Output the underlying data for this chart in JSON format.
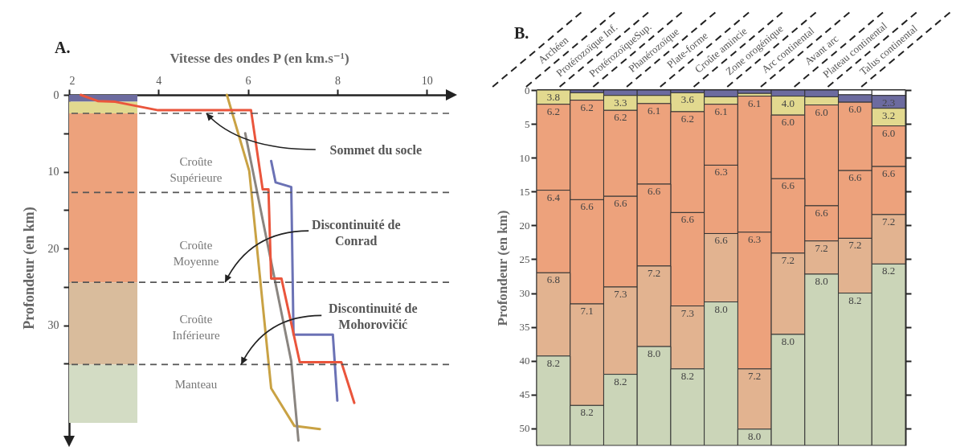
{
  "chart_data": [
    {
      "type": "line",
      "title": "A.",
      "xlabel": "Vitesse des ondes P (en km.s⁻¹)",
      "ylabel": "Profondeur (en km)",
      "xlim": [
        2,
        10.5
      ],
      "xticks": [
        2,
        4,
        6,
        8,
        10
      ],
      "ylim": [
        45,
        0
      ],
      "yticks": [
        0,
        {
          "value": 5,
          "label": null
        },
        10,
        {
          "value": 15,
          "label": null
        },
        20,
        {
          "value": 25,
          "label": null
        },
        30,
        {
          "value": 35,
          "label": null
        }
      ],
      "marker": "none",
      "line_style": "solid",
      "series": [
        {
          "color": "#c9a244",
          "x": [
            5.53,
            6.03,
            6.52,
            7.04,
            7.61
          ],
          "values": [
            0,
            9.9,
            38.2,
            43.1,
            43.5
          ]
        },
        {
          "color": "#8a8580",
          "x": [
            5.94,
            6.97,
            7.13
          ],
          "values": [
            5.0,
            34.7,
            45.0
          ]
        },
        {
          "color": "#6b72b5",
          "x": [
            6.52,
            6.62,
            6.97,
            7.02,
            7.9,
            8.0
          ],
          "values": [
            8.6,
            11.4,
            12.0,
            31.2,
            31.2,
            39.8
          ]
        },
        {
          "color": "#ea553c",
          "x": [
            2.26,
            2.64,
            3.03,
            3.99,
            6.07,
            6.33,
            6.46,
            6.52,
            6.75,
            7.16,
            8.09,
            8.38
          ],
          "values": [
            0,
            0.8,
            0.9,
            2.0,
            2.0,
            12.3,
            12.3,
            23.9,
            23.9,
            34.8,
            34.8,
            40.1
          ]
        }
      ],
      "bands": [
        {
          "axis": "y",
          "from": 0,
          "to": 0.9,
          "color": "#6c6b9f"
        },
        {
          "axis": "y",
          "from": 0.9,
          "to": 2.4,
          "color": "#e2d98f"
        },
        {
          "axis": "y",
          "from": 2.4,
          "to": 24.4,
          "color": "#eda27c"
        },
        {
          "axis": "y",
          "from": 24.4,
          "to": 35.1,
          "color": "#d9bc9c"
        },
        {
          "axis": "y",
          "from": 35.1,
          "to": 42.7,
          "color": "#d3dcc4"
        }
      ],
      "ref_lines": [
        {
          "axis": "y",
          "value": 2.4,
          "line_style": "dashed"
        },
        {
          "axis": "y",
          "value": 12.7,
          "line_style": "dashed"
        },
        {
          "axis": "y",
          "value": 24.4,
          "line_style": "dashed"
        },
        {
          "axis": "y",
          "value": 35.1,
          "line_style": "dashed"
        }
      ],
      "annotations": [
        "Croûte\nSupérieure",
        "Croûte\nMoyenne",
        "Croûte\nInférieure",
        "Manteau",
        {
          "text": "Sommet du socle",
          "x": 5.07,
          "y": 2.4
        },
        {
          "text": "Discontinuité de\nConrad",
          "x": 5.49,
          "y": 24.4
        },
        {
          "text": "Discontinuité de\nMohorovičić",
          "x": 5.85,
          "y": 35.1
        }
      ]
    },
    {
      "type": "bar",
      "stacked": true,
      "title": "B.",
      "ylabel": "Profondeur (en km)",
      "categories": [
        "Archéen",
        "Protérozoïque Inf.",
        "ProtérozoïqueSup.",
        "Phanérozoïque",
        "Plate-forme",
        "Croûte amincie",
        "Zone orogénique",
        "Arc continental",
        "Avant arc",
        "Plateau continental",
        "Talus continental"
      ],
      "ylim": [
        52.5,
        0
      ],
      "yticks": [
        0,
        5,
        10,
        15,
        20,
        25,
        30,
        35,
        40,
        45,
        50
      ],
      "series": [
        {
          "color": "#ffffff",
          "values": [
            null,
            null,
            null,
            null,
            null,
            null,
            null,
            null,
            null,
            0.7,
            0.8
          ]
        },
        {
          "color": "#6c6b9f",
          "values": [
            null,
            0.4,
            0.8,
            0.8,
            0.4,
            1.0,
            0.5,
            0.9,
            1.0,
            1.1,
            1.9
          ]
        },
        {
          "color": "#e2d98f",
          "values": [
            2.1,
            1.1,
            2.2,
            1.2,
            2.8,
            1.1,
            0.4,
            2.8,
            1.2,
            null,
            2.6
          ]
        },
        {
          "color": "#eda27c",
          "values": [
            12.7,
            14.7,
            12.7,
            11.9,
            14.9,
            9.0,
            20.1,
            9.4,
            14.9,
            10.1,
            6.0
          ]
        },
        {
          "color": "#eda27c",
          "values": [
            12.2,
            15.4,
            13.4,
            12.1,
            13.8,
            10.1,
            20.2,
            11.0,
            5.2,
            10.0,
            7.1
          ]
        },
        {
          "color": "#e2b390",
          "values": [
            12.3,
            15.0,
            12.9,
            11.9,
            9.3,
            10.1,
            8.9,
            12.0,
            4.9,
            8.1,
            7.3
          ]
        },
        {
          "color": "#cbd5b8",
          "values": [
            13.2,
            5.9,
            10.5,
            14.6,
            11.3,
            21.2,
            2.4,
            16.4,
            25.3,
            22.5,
            26.8
          ]
        }
      ],
      "annotations": [
        {
          "text": "3.8",
          "x": "Archéen",
          "y": 0
        },
        {
          "text": "6.2",
          "x": "Archéen",
          "y": 2.1
        },
        {
          "text": "6.4",
          "x": "Archéen",
          "y": 14.8
        },
        {
          "text": "6.8",
          "x": "Archéen",
          "y": 27.0
        },
        {
          "text": "8.2",
          "x": "Archéen",
          "y": 39.3
        },
        {
          "text": "6.2",
          "x": "Protérozoïque Inf.",
          "y": 1.5
        },
        {
          "text": "6.6",
          "x": "Protérozoïque Inf.",
          "y": 16.2
        },
        {
          "text": "7.1",
          "x": "Protérozoïque Inf.",
          "y": 31.6
        },
        {
          "text": "8.2",
          "x": "Protérozoïque Inf.",
          "y": 46.6
        },
        {
          "text": "3.3",
          "x": "ProtérozoïqueSup.",
          "y": 0.8
        },
        {
          "text": "6.2",
          "x": "ProtérozoïqueSup.",
          "y": 3.0
        },
        {
          "text": "6.6",
          "x": "ProtérozoïqueSup.",
          "y": 15.7
        },
        {
          "text": "7.3",
          "x": "ProtérozoïqueSup.",
          "y": 29.1
        },
        {
          "text": "8.2",
          "x": "ProtérozoïqueSup.",
          "y": 42.0
        },
        {
          "text": "6.1",
          "x": "Phanérozoïque",
          "y": 2.0
        },
        {
          "text": "6.6",
          "x": "Phanérozoïque",
          "y": 13.9
        },
        {
          "text": "7.2",
          "x": "Phanérozoïque",
          "y": 26.0
        },
        {
          "text": "8.0",
          "x": "Phanérozoïque",
          "y": 37.9
        },
        {
          "text": "3.6",
          "x": "Plate-forme",
          "y": 0.4
        },
        {
          "text": "6.2",
          "x": "Plate-forme",
          "y": 3.2
        },
        {
          "text": "6.6",
          "x": "Plate-forme",
          "y": 18.1
        },
        {
          "text": "7.3",
          "x": "Plate-forme",
          "y": 31.9
        },
        {
          "text": "8.2",
          "x": "Plate-forme",
          "y": 41.2
        },
        {
          "text": "6.1",
          "x": "Croûte amincie",
          "y": 2.1
        },
        {
          "text": "6.3",
          "x": "Croûte amincie",
          "y": 11.1
        },
        {
          "text": "6.6",
          "x": "Croûte amincie",
          "y": 21.2
        },
        {
          "text": "8.0",
          "x": "Croûte amincie",
          "y": 31.3
        },
        {
          "text": "6.1",
          "x": "Zone orogénique",
          "y": 0.9
        },
        {
          "text": "6.3",
          "x": "Zone orogénique",
          "y": 21.0
        },
        {
          "text": "7.2",
          "x": "Zone orogénique",
          "y": 41.2
        },
        {
          "text": "8.0",
          "x": "Zone orogénique",
          "y": 50.1
        },
        {
          "text": "4.0",
          "x": "Arc continental",
          "y": 0.9
        },
        {
          "text": "6.0",
          "x": "Arc continental",
          "y": 3.7
        },
        {
          "text": "6.6",
          "x": "Arc continental",
          "y": 13.1
        },
        {
          "text": "7.2",
          "x": "Arc continental",
          "y": 24.1
        },
        {
          "text": "8.0",
          "x": "Arc continental",
          "y": 36.1
        },
        {
          "text": "6.0",
          "x": "Avant arc",
          "y": 2.2
        },
        {
          "text": "6.6",
          "x": "Avant arc",
          "y": 17.1
        },
        {
          "text": "7.2",
          "x": "Avant arc",
          "y": 22.3
        },
        {
          "text": "8.0",
          "x": "Avant arc",
          "y": 27.2
        },
        {
          "text": "6.0",
          "x": "Plateau continental",
          "y": 1.8
        },
        {
          "text": "6.6",
          "x": "Plateau continental",
          "y": 11.9
        },
        {
          "text": "7.2",
          "x": "Plateau continental",
          "y": 21.9
        },
        {
          "text": "8.2",
          "x": "Plateau continental",
          "y": 30.0
        },
        {
          "text": "2.3",
          "x": "Talus continental",
          "y": 0.8
        },
        {
          "text": "3.2",
          "x": "Talus continental",
          "y": 2.7
        },
        {
          "text": "6.0",
          "x": "Talus continental",
          "y": 5.3
        },
        {
          "text": "6.6",
          "x": "Talus continental",
          "y": 11.3
        },
        {
          "text": "7.2",
          "x": "Talus continental",
          "y": 18.4
        },
        {
          "text": "8.2",
          "x": "Talus continental",
          "y": 25.7
        }
      ]
    }
  ]
}
